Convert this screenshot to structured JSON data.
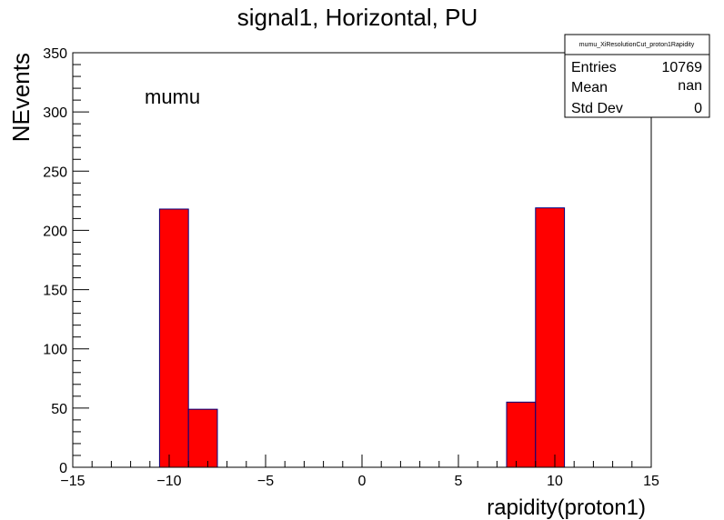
{
  "chart_data": {
    "type": "bar",
    "title": "signal1, Horizontal, PU",
    "xlabel": "rapidity(proton1)",
    "ylabel": "NEvents",
    "annotation": "mumu",
    "xlim": [
      -15,
      15
    ],
    "ylim": [
      0,
      350
    ],
    "x_ticks": [
      -15,
      -10,
      -5,
      0,
      5,
      10,
      15
    ],
    "x_tick_labels": [
      "−15",
      "−10",
      "−5",
      "0",
      "5",
      "10",
      "15"
    ],
    "y_ticks": [
      0,
      50,
      100,
      150,
      200,
      250,
      300,
      350
    ],
    "y_tick_labels": [
      "0",
      "50",
      "100",
      "150",
      "200",
      "250",
      "300",
      "350"
    ],
    "bin_width": 1.5,
    "bins": [
      {
        "x_low": -10.5,
        "x_high": -9.0,
        "value": 218
      },
      {
        "x_low": -9.0,
        "x_high": -7.5,
        "value": 49
      },
      {
        "x_low": 7.5,
        "x_high": 9.0,
        "value": 55
      },
      {
        "x_low": 9.0,
        "x_high": 10.5,
        "value": 219
      }
    ],
    "fill_color": "#ff0000",
    "edge_color": "#000080",
    "grid": false,
    "stats_box": {
      "title": "mumu_XiResolutionCut_proton1Rapidity",
      "rows": [
        {
          "label": "Entries",
          "value": "10769"
        },
        {
          "label": "Mean",
          "value": "nan"
        },
        {
          "label": "Std Dev",
          "value": "0"
        }
      ],
      "placement": "top-right"
    }
  }
}
